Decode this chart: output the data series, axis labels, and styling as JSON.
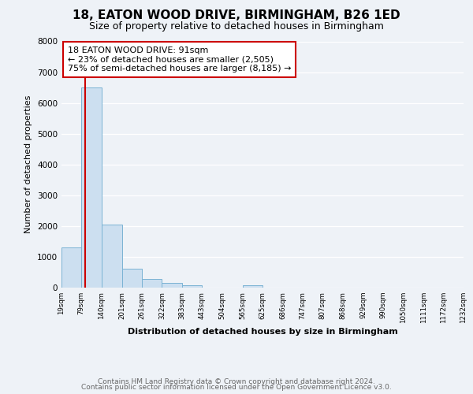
{
  "title": "18, EATON WOOD DRIVE, BIRMINGHAM, B26 1ED",
  "subtitle": "Size of property relative to detached houses in Birmingham",
  "xlabel": "Distribution of detached houses by size in Birmingham",
  "ylabel": "Number of detached properties",
  "bin_labels": [
    "19sqm",
    "79sqm",
    "140sqm",
    "201sqm",
    "261sqm",
    "322sqm",
    "383sqm",
    "443sqm",
    "504sqm",
    "565sqm",
    "625sqm",
    "686sqm",
    "747sqm",
    "807sqm",
    "868sqm",
    "929sqm",
    "990sqm",
    "1050sqm",
    "1111sqm",
    "1172sqm",
    "1232sqm"
  ],
  "bar_values": [
    1300,
    6500,
    2050,
    620,
    290,
    150,
    80,
    0,
    0,
    80,
    0,
    0,
    0,
    0,
    0,
    0,
    0,
    0,
    0,
    0
  ],
  "bar_color": "#ccdff0",
  "bar_edge_color": "#7ab3d4",
  "property_line_x": 91,
  "bin_edges": [
    19,
    79,
    140,
    201,
    261,
    322,
    383,
    443,
    504,
    565,
    625,
    686,
    747,
    807,
    868,
    929,
    990,
    1050,
    1111,
    1172,
    1232
  ],
  "ylim": [
    0,
    8000
  ],
  "yticks": [
    0,
    1000,
    2000,
    3000,
    4000,
    5000,
    6000,
    7000,
    8000
  ],
  "annotation_text": "18 EATON WOOD DRIVE: 91sqm\n← 23% of detached houses are smaller (2,505)\n75% of semi-detached houses are larger (8,185) →",
  "annotation_box_color": "white",
  "annotation_box_edge_color": "#cc0000",
  "red_line_color": "#cc0000",
  "footer_line1": "Contains HM Land Registry data © Crown copyright and database right 2024.",
  "footer_line2": "Contains public sector information licensed under the Open Government Licence v3.0.",
  "background_color": "#eef2f7",
  "grid_color": "#ffffff",
  "title_fontsize": 11,
  "subtitle_fontsize": 9,
  "annotation_fontsize": 8,
  "axis_fontsize": 7.5,
  "footer_fontsize": 6.5,
  "ylabel_fontsize": 8
}
